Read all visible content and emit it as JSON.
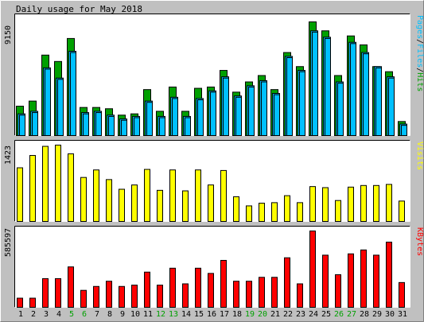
{
  "chart_data": {
    "type": "bar",
    "title": "Daily usage for May 2018",
    "categories": [
      "1",
      "2",
      "3",
      "4",
      "5",
      "6",
      "7",
      "8",
      "9",
      "10",
      "11",
      "12",
      "13",
      "14",
      "15",
      "16",
      "17",
      "18",
      "19",
      "20",
      "21",
      "22",
      "23",
      "24",
      "25",
      "26",
      "27",
      "28",
      "29",
      "30",
      "31"
    ],
    "weekend_days": [
      "5",
      "6",
      "12",
      "13",
      "19",
      "20",
      "26",
      "27"
    ],
    "panels": [
      {
        "id": "top",
        "max_label": "9150",
        "ylim": [
          0,
          9150
        ],
        "legend": [
          "Pages",
          "/",
          "Files",
          "/",
          "Hits"
        ],
        "series": [
          {
            "name": "Hits",
            "color": "#00a000",
            "values": [
              2300,
              2700,
              6300,
              5800,
              7600,
              2200,
              2200,
              2100,
              1600,
              1700,
              3600,
              1900,
              3800,
              1900,
              3700,
              3800,
              5100,
              3400,
              4200,
              4700,
              3600,
              6500,
              5400,
              8900,
              8200,
              4700,
              7800,
              7100,
              5400,
              5000,
              1100
            ]
          },
          {
            "name": "Files",
            "color": "#00c0ff",
            "values": [
              1700,
              1900,
              5300,
              4500,
              6600,
              1800,
              1900,
              1600,
              1300,
              1500,
              2700,
              1500,
              3000,
              1500,
              2900,
              3500,
              4600,
              3100,
              3900,
              4300,
              3300,
              6200,
              5100,
              8200,
              7700,
              4200,
              7300,
              6500,
              5400,
              4600,
              900
            ]
          },
          {
            "name": "Pages",
            "color": "#00c0ff",
            "values": [
              1600,
              1800,
              5200,
              4400,
              6500,
              1700,
              1800,
              1500,
              1200,
              1400,
              2600,
              1400,
              2900,
              1400,
              2800,
              3400,
              4500,
              3000,
              3800,
              4200,
              3200,
              6100,
              5000,
              8100,
              7600,
              4100,
              7200,
              6400,
              5300,
              4500,
              800
            ]
          }
        ]
      },
      {
        "id": "middle",
        "max_label": "1423",
        "ylim": [
          0,
          1423
        ],
        "legend": [
          "Visits"
        ],
        "series": [
          {
            "name": "Visits",
            "color": "#ffff00",
            "values": [
              1000,
              1230,
              1400,
              1423,
              1260,
              820,
              960,
              780,
              600,
              680,
              970,
              580,
              960,
              570,
              960,
              680,
              950,
              460,
              290,
              340,
              350,
              480,
              350,
              650,
              630,
              390,
              640,
              670,
              670,
              690,
              380
            ]
          }
        ]
      },
      {
        "id": "bottom",
        "max_label": "585597",
        "ylim": [
          0,
          585597
        ],
        "legend": [
          "KBytes"
        ],
        "series": [
          {
            "name": "KBytes",
            "color": "#ff0000",
            "values": [
              70000,
              70000,
              220000,
              220000,
              310000,
              130000,
              160000,
              200000,
              160000,
              170000,
              270000,
              170000,
              300000,
              180000,
              300000,
              260000,
              360000,
              200000,
              200000,
              230000,
              230000,
              380000,
              180000,
              585597,
              400000,
              250000,
              410000,
              440000,
              400000,
              500000,
              190000
            ]
          }
        ]
      }
    ]
  }
}
